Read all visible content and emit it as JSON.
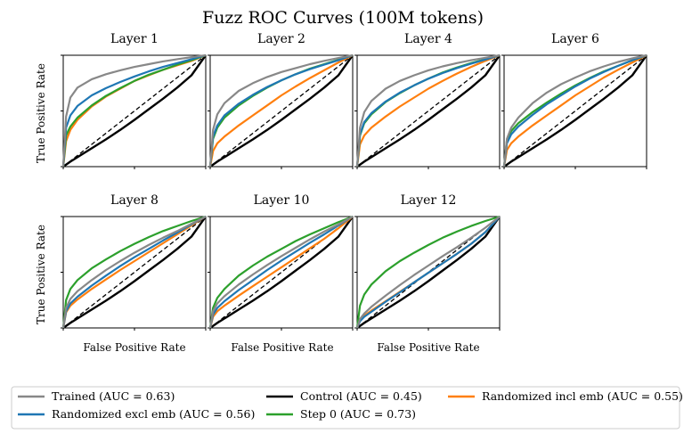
{
  "chart_data": {
    "type": "line",
    "title": "Fuzz ROC Curves (100M tokens)",
    "xlabel": "False Positive Rate",
    "ylabel": "True Positive Rate",
    "xlim": [
      0,
      1
    ],
    "ylim": [
      0,
      1
    ],
    "grid": false,
    "legend_placement": "bottom",
    "reference_line": {
      "style": "dashed",
      "x": [
        0,
        1
      ],
      "y": [
        0,
        1
      ]
    },
    "legend": [
      {
        "key": "trained",
        "label": "Trained (AUC = 0.63)",
        "color": "#888888"
      },
      {
        "key": "control",
        "label": "Control (AUC = 0.45)",
        "color": "#000000"
      },
      {
        "key": "rand_incl",
        "label": "Randomized incl emb (AUC = 0.55)",
        "color": "#ff7f0e"
      },
      {
        "key": "rand_excl",
        "label": "Randomized excl emb (AUC = 0.56)",
        "color": "#1f77b4"
      },
      {
        "key": "step0",
        "label": "Step 0 (AUC = 0.73)",
        "color": "#2ca02c"
      }
    ],
    "x": [
      0,
      0.02,
      0.05,
      0.1,
      0.2,
      0.3,
      0.4,
      0.5,
      0.6,
      0.7,
      0.8,
      0.9,
      1.0
    ],
    "panels": [
      {
        "title": "Layer 1",
        "series": {
          "control": [
            0,
            0.018,
            0.045,
            0.085,
            0.165,
            0.245,
            0.33,
            0.42,
            0.515,
            0.61,
            0.71,
            0.82,
            1.0
          ],
          "rand_incl": [
            0,
            0.23,
            0.33,
            0.42,
            0.54,
            0.63,
            0.7,
            0.77,
            0.82,
            0.87,
            0.91,
            0.95,
            1.0
          ],
          "step0": [
            0,
            0.28,
            0.36,
            0.44,
            0.55,
            0.635,
            0.705,
            0.77,
            0.825,
            0.87,
            0.915,
            0.955,
            1.0
          ],
          "rand_excl": [
            0,
            0.35,
            0.46,
            0.545,
            0.64,
            0.705,
            0.76,
            0.81,
            0.855,
            0.895,
            0.93,
            0.965,
            1.0
          ],
          "trained": [
            0,
            0.45,
            0.62,
            0.71,
            0.785,
            0.83,
            0.865,
            0.895,
            0.92,
            0.945,
            0.965,
            0.983,
            1.0
          ]
        }
      },
      {
        "title": "Layer 2",
        "series": {
          "control": [
            0,
            0.018,
            0.045,
            0.085,
            0.165,
            0.245,
            0.33,
            0.42,
            0.515,
            0.61,
            0.71,
            0.82,
            1.0
          ],
          "rand_incl": [
            0,
            0.14,
            0.21,
            0.27,
            0.37,
            0.46,
            0.55,
            0.64,
            0.72,
            0.795,
            0.865,
            0.935,
            1.0
          ],
          "step0": [
            0,
            0.25,
            0.35,
            0.44,
            0.55,
            0.635,
            0.71,
            0.775,
            0.83,
            0.88,
            0.92,
            0.96,
            1.0
          ],
          "rand_excl": [
            0,
            0.27,
            0.37,
            0.46,
            0.565,
            0.645,
            0.715,
            0.775,
            0.83,
            0.875,
            0.915,
            0.955,
            1.0
          ],
          "trained": [
            0,
            0.33,
            0.47,
            0.57,
            0.68,
            0.75,
            0.805,
            0.85,
            0.885,
            0.92,
            0.95,
            0.975,
            1.0
          ]
        }
      },
      {
        "title": "Layer 4",
        "series": {
          "control": [
            0,
            0.018,
            0.045,
            0.085,
            0.165,
            0.245,
            0.33,
            0.42,
            0.515,
            0.61,
            0.71,
            0.82,
            1.0
          ],
          "rand_incl": [
            0,
            0.2,
            0.28,
            0.35,
            0.45,
            0.54,
            0.62,
            0.7,
            0.77,
            0.835,
            0.895,
            0.95,
            1.0
          ],
          "step0": [
            0,
            0.28,
            0.39,
            0.47,
            0.58,
            0.66,
            0.73,
            0.79,
            0.845,
            0.89,
            0.93,
            0.965,
            1.0
          ],
          "rand_excl": [
            0,
            0.29,
            0.4,
            0.48,
            0.585,
            0.665,
            0.73,
            0.79,
            0.84,
            0.885,
            0.925,
            0.962,
            1.0
          ],
          "trained": [
            0,
            0.35,
            0.49,
            0.59,
            0.7,
            0.77,
            0.82,
            0.865,
            0.9,
            0.93,
            0.955,
            0.978,
            1.0
          ]
        }
      },
      {
        "title": "Layer 6",
        "series": {
          "control": [
            0,
            0.018,
            0.045,
            0.085,
            0.165,
            0.245,
            0.33,
            0.42,
            0.515,
            0.61,
            0.71,
            0.82,
            1.0
          ],
          "rand_incl": [
            0,
            0.15,
            0.21,
            0.27,
            0.37,
            0.46,
            0.55,
            0.64,
            0.72,
            0.8,
            0.87,
            0.935,
            1.0
          ],
          "step0": [
            0,
            0.24,
            0.32,
            0.39,
            0.49,
            0.575,
            0.655,
            0.73,
            0.795,
            0.855,
            0.905,
            0.955,
            1.0
          ],
          "rand_excl": [
            0,
            0.21,
            0.29,
            0.36,
            0.465,
            0.56,
            0.64,
            0.72,
            0.79,
            0.85,
            0.905,
            0.955,
            1.0
          ],
          "trained": [
            0,
            0.25,
            0.35,
            0.44,
            0.57,
            0.665,
            0.74,
            0.8,
            0.855,
            0.9,
            0.94,
            0.972,
            1.0
          ]
        }
      },
      {
        "title": "Layer 8",
        "series": {
          "control": [
            0,
            0.018,
            0.045,
            0.085,
            0.165,
            0.245,
            0.33,
            0.42,
            0.515,
            0.61,
            0.71,
            0.82,
            1.0
          ],
          "rand_incl": [
            0,
            0.14,
            0.2,
            0.255,
            0.35,
            0.435,
            0.52,
            0.6,
            0.68,
            0.76,
            0.84,
            0.92,
            1.0
          ],
          "step0": [
            0,
            0.25,
            0.35,
            0.43,
            0.535,
            0.615,
            0.69,
            0.755,
            0.815,
            0.87,
            0.915,
            0.96,
            1.0
          ],
          "rand_excl": [
            0,
            0.15,
            0.22,
            0.28,
            0.38,
            0.47,
            0.555,
            0.635,
            0.71,
            0.785,
            0.855,
            0.93,
            1.0
          ],
          "trained": [
            0,
            0.18,
            0.26,
            0.33,
            0.43,
            0.52,
            0.6,
            0.675,
            0.745,
            0.81,
            0.87,
            0.935,
            1.0
          ]
        }
      },
      {
        "title": "Layer 10",
        "series": {
          "control": [
            0,
            0.018,
            0.045,
            0.085,
            0.165,
            0.245,
            0.33,
            0.42,
            0.515,
            0.61,
            0.71,
            0.82,
            1.0
          ],
          "rand_incl": [
            0,
            0.1,
            0.15,
            0.2,
            0.29,
            0.375,
            0.46,
            0.545,
            0.63,
            0.715,
            0.8,
            0.895,
            1.0
          ],
          "step0": [
            0,
            0.18,
            0.27,
            0.35,
            0.47,
            0.56,
            0.64,
            0.71,
            0.78,
            0.84,
            0.895,
            0.95,
            1.0
          ],
          "rand_excl": [
            0,
            0.12,
            0.18,
            0.24,
            0.34,
            0.43,
            0.52,
            0.605,
            0.685,
            0.765,
            0.84,
            0.92,
            1.0
          ],
          "trained": [
            0,
            0.15,
            0.22,
            0.285,
            0.39,
            0.48,
            0.565,
            0.645,
            0.72,
            0.795,
            0.865,
            0.93,
            1.0
          ]
        }
      },
      {
        "title": "Layer 12",
        "series": {
          "control": [
            0,
            0.018,
            0.045,
            0.085,
            0.165,
            0.245,
            0.33,
            0.42,
            0.515,
            0.61,
            0.71,
            0.82,
            1.0
          ],
          "rand_incl": [
            0,
            0.07,
            0.11,
            0.155,
            0.24,
            0.325,
            0.41,
            0.495,
            0.58,
            0.665,
            0.755,
            0.86,
            1.0
          ],
          "step0": [
            0,
            0.2,
            0.3,
            0.39,
            0.51,
            0.6,
            0.675,
            0.745,
            0.81,
            0.865,
            0.915,
            0.96,
            1.0
          ],
          "rand_excl": [
            0,
            0.06,
            0.1,
            0.145,
            0.235,
            0.32,
            0.41,
            0.495,
            0.58,
            0.665,
            0.755,
            0.86,
            1.0
          ],
          "trained": [
            0,
            0.08,
            0.13,
            0.19,
            0.29,
            0.385,
            0.475,
            0.56,
            0.645,
            0.725,
            0.81,
            0.9,
            1.0
          ]
        }
      }
    ]
  }
}
